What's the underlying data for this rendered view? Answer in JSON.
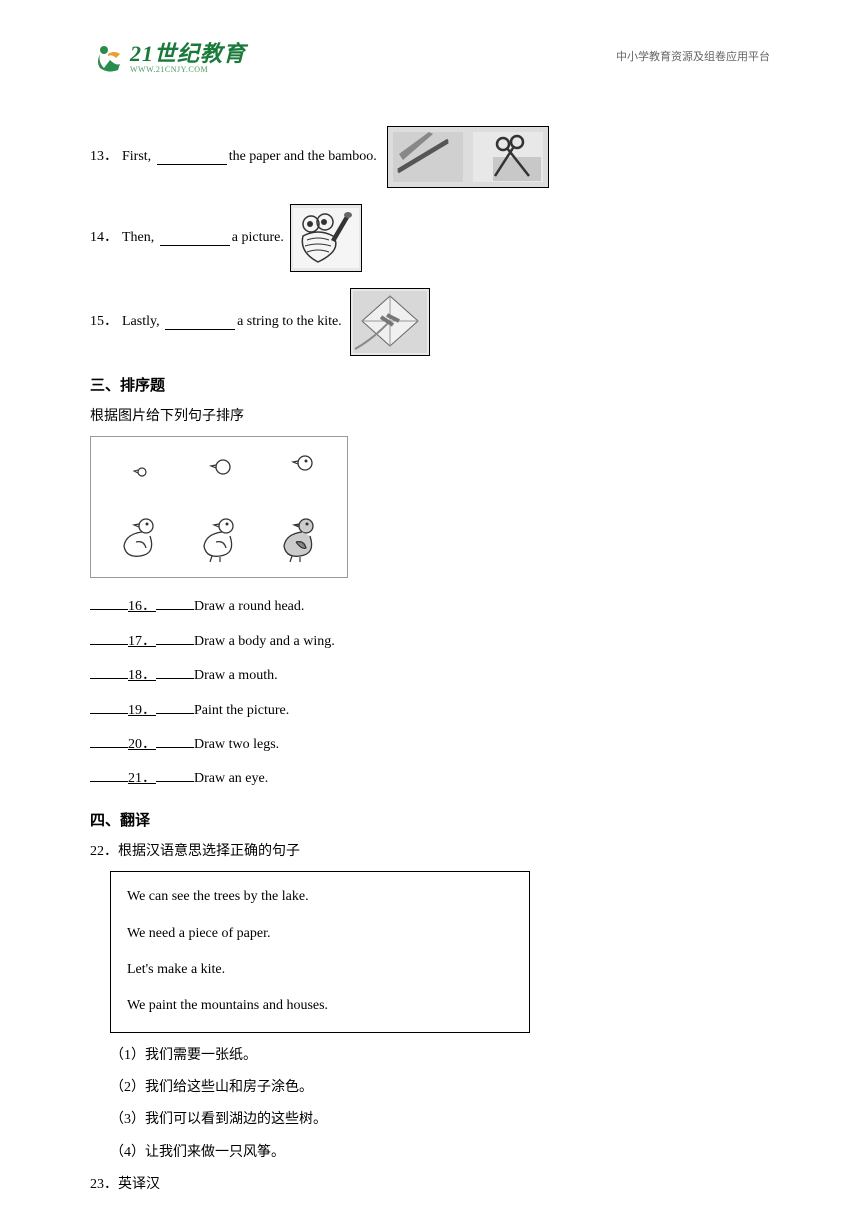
{
  "header": {
    "logo_main": "21世纪教育",
    "logo_sub": "WWW.21CNJY.COM",
    "right_text": "中小学教育资源及组卷应用平台"
  },
  "questions": {
    "q13": {
      "num": "13．",
      "prefix": "First,",
      "suffix": "the paper and the bamboo."
    },
    "q14": {
      "num": "14．",
      "prefix": "Then,",
      "suffix": " a picture."
    },
    "q15": {
      "num": "15．",
      "prefix": "Lastly,",
      "suffix": "a string to the kite."
    }
  },
  "section3": {
    "title": "三、排序题",
    "subtitle": "根据图片给下列句子排序"
  },
  "sort_items": [
    {
      "num": "16．",
      "text": "Draw a round head."
    },
    {
      "num": "17．",
      "text": "Draw a body and a wing."
    },
    {
      "num": "18．",
      "text": "Draw a mouth."
    },
    {
      "num": "19．",
      "text": "Paint the picture."
    },
    {
      "num": "20．",
      "text": "Draw two legs."
    },
    {
      "num": "21．",
      "text": "Draw an eye."
    }
  ],
  "section4": {
    "title": "四、翻译",
    "q22_num": "22．",
    "q22_text": "根据汉语意思选择正确的句子",
    "box_sentences": [
      "We can see the trees by the lake.",
      "We need a piece of paper.",
      "Let's make a kite.",
      "We paint the mountains and houses."
    ],
    "cn_items": [
      "（1）我们需要一张纸。",
      "（2）我们给这些山和房子涂色。",
      "（3）我们可以看到湖边的这些树。",
      "（4）让我们来做一只风筝。"
    ],
    "q23_num": "23．",
    "q23_text": "英译汉"
  },
  "colors": {
    "logo_green": "#1a7a3a",
    "text": "#000000",
    "header_grey": "#666666"
  }
}
